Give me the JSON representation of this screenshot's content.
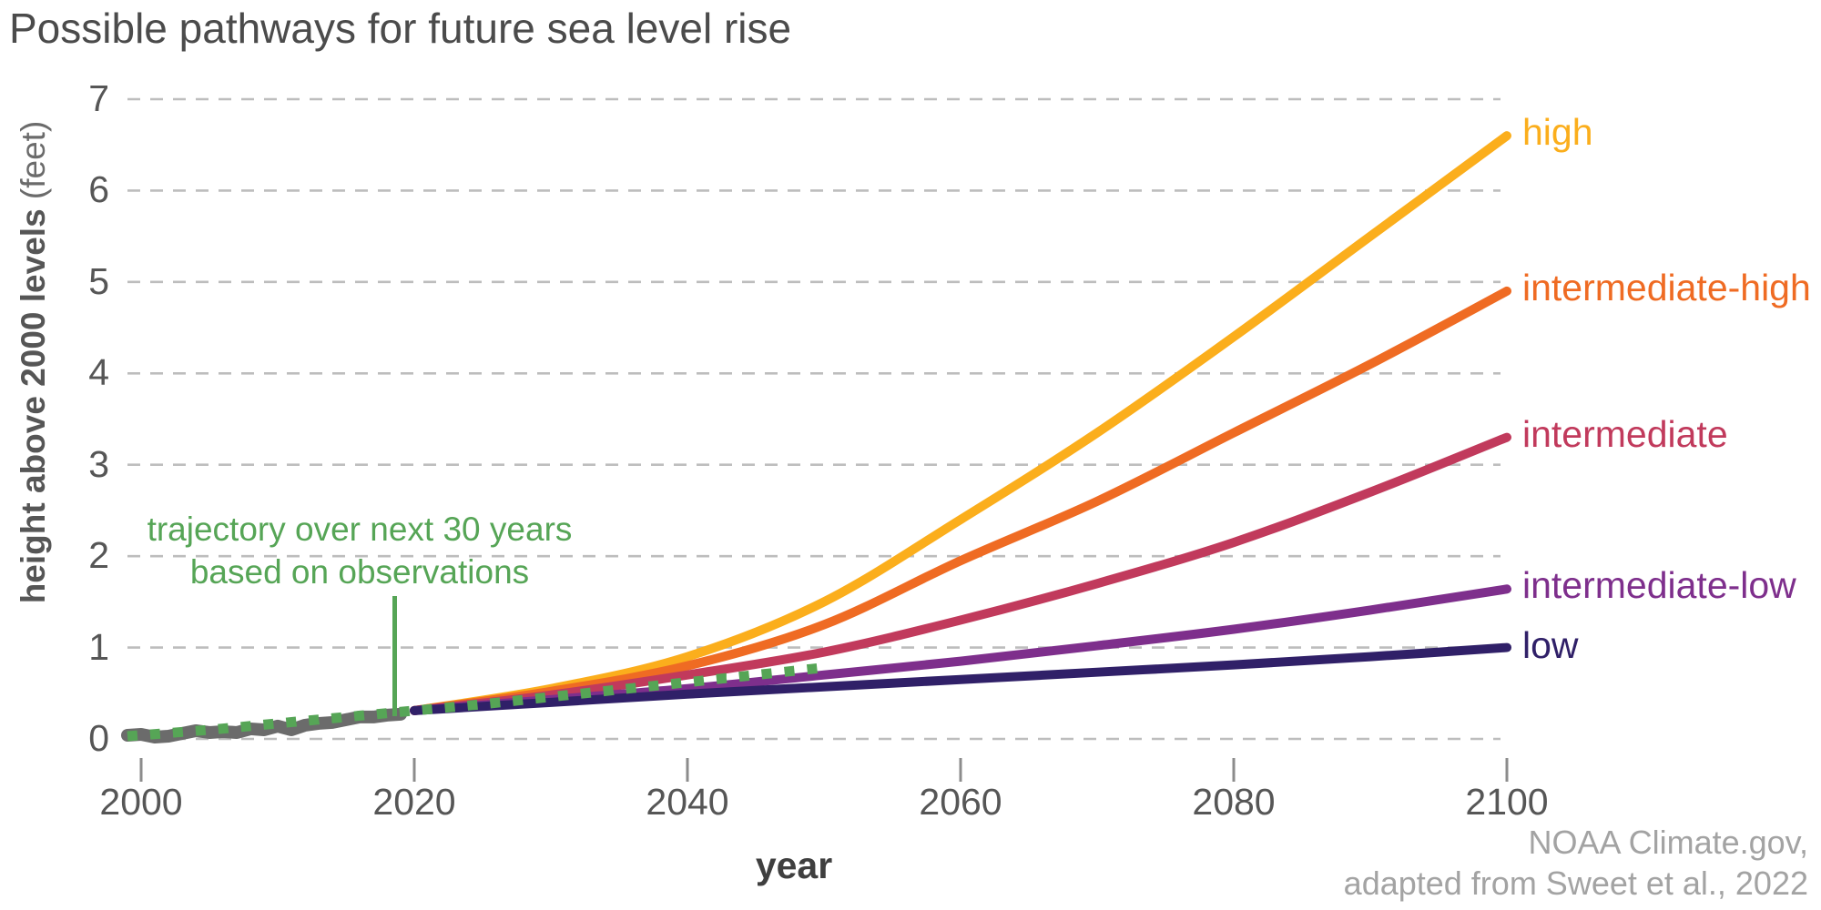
{
  "title": "Possible pathways for future sea level rise",
  "annotation": {
    "line1": "trajectory over next 30 years",
    "line2": "based on observations",
    "color": "#56a556"
  },
  "attribution": {
    "line1": "NOAA Climate.gov,",
    "line2": "adapted from Sweet et al., 2022"
  },
  "x_axis": {
    "label": "year",
    "ticks": [
      2000,
      2020,
      2040,
      2060,
      2080,
      2100
    ]
  },
  "y_axis": {
    "label_bold": "height above 2000 levels",
    "label_normal": "(feet)",
    "ticks": [
      0,
      1,
      2,
      3,
      4,
      5,
      6,
      7
    ]
  },
  "chart_data": {
    "type": "line",
    "title": "Possible pathways for future sea level rise",
    "xlabel": "year",
    "ylabel": "height above 2000 levels (feet)",
    "units": "feet above 2000 levels",
    "xlim": [
      1998,
      2104
    ],
    "ylim": [
      0,
      7
    ],
    "grid": "horizontal dashed gridlines at every 1 ft; dashed zero line; no solid axes",
    "legend_position": "labels at right end of each line, colored as the line",
    "colors": {
      "gridline": "#bdbdbd",
      "tick": "#8c8c8c",
      "axis_text": "#565656",
      "title_text": "#4b4b4b",
      "attribution_text": "#a3a3a3"
    },
    "series": [
      {
        "name": "high",
        "label": "high",
        "color": "#fbae1c",
        "style": "solid",
        "x": [
          2020,
          2030,
          2040,
          2050,
          2060,
          2070,
          2080,
          2090,
          2100
        ],
        "y": [
          0.31,
          0.55,
          0.9,
          1.5,
          2.4,
          3.35,
          4.4,
          5.5,
          6.6
        ]
      },
      {
        "name": "intermediate-high",
        "label": "intermediate-high",
        "color": "#ef6b23",
        "style": "solid",
        "x": [
          2020,
          2030,
          2040,
          2050,
          2060,
          2070,
          2080,
          2090,
          2100
        ],
        "y": [
          0.31,
          0.52,
          0.8,
          1.25,
          1.95,
          2.6,
          3.35,
          4.1,
          4.9
        ]
      },
      {
        "name": "intermediate",
        "label": "intermediate",
        "color": "#c13a5c",
        "style": "solid",
        "x": [
          2020,
          2030,
          2040,
          2050,
          2060,
          2070,
          2080,
          2090,
          2100
        ],
        "y": [
          0.31,
          0.48,
          0.7,
          0.95,
          1.3,
          1.7,
          2.15,
          2.7,
          3.3
        ]
      },
      {
        "name": "intermediate-low",
        "label": "intermediate-low",
        "color": "#7e2f8c",
        "style": "solid",
        "x": [
          2020,
          2030,
          2040,
          2050,
          2060,
          2070,
          2080,
          2090,
          2100
        ],
        "y": [
          0.31,
          0.43,
          0.55,
          0.7,
          0.85,
          1.02,
          1.2,
          1.41,
          1.64
        ]
      },
      {
        "name": "low",
        "label": "low",
        "color": "#302068",
        "style": "solid",
        "x": [
          2020,
          2030,
          2040,
          2050,
          2060,
          2070,
          2080,
          2090,
          2100
        ],
        "y": [
          0.31,
          0.4,
          0.49,
          0.57,
          0.65,
          0.73,
          0.81,
          0.9,
          1.0
        ]
      },
      {
        "name": "observed",
        "label": "",
        "color": "#6b6b6b",
        "style": "solid-thick",
        "x": [
          1999,
          2000,
          2001,
          2002,
          2003,
          2004,
          2005,
          2006,
          2007,
          2008,
          2009,
          2010,
          2011,
          2012,
          2013,
          2014,
          2015,
          2016,
          2017,
          2018,
          2019
        ],
        "y": [
          0.04,
          0.05,
          0.02,
          0.03,
          0.06,
          0.09,
          0.07,
          0.08,
          0.07,
          0.11,
          0.1,
          0.14,
          0.1,
          0.15,
          0.17,
          0.18,
          0.21,
          0.24,
          0.24,
          0.26,
          0.27
        ]
      },
      {
        "name": "trajectory",
        "label": "",
        "color": "#56a556",
        "style": "dotted",
        "x": [
          1999,
          2005,
          2010,
          2015,
          2020,
          2025,
          2030,
          2035,
          2040,
          2045,
          2050
        ],
        "y": [
          0.03,
          0.1,
          0.17,
          0.24,
          0.31,
          0.38,
          0.46,
          0.54,
          0.62,
          0.7,
          0.78
        ]
      }
    ]
  }
}
